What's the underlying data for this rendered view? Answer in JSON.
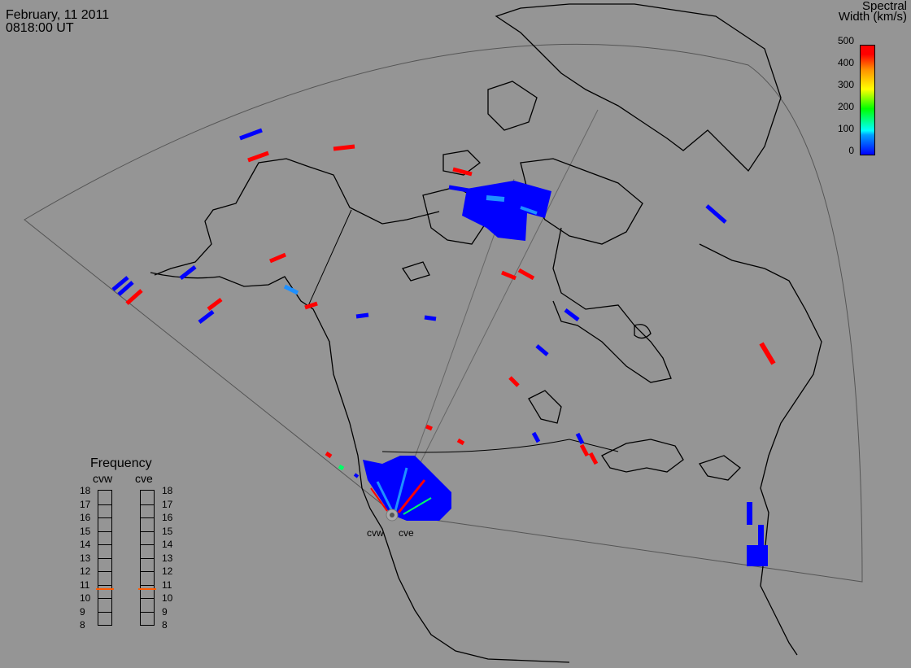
{
  "header": {
    "date": "February, 11 2011",
    "time": "0818:00 UT"
  },
  "colorbar": {
    "title_line1": "Spectral",
    "title_line2": "Width (km/s)",
    "ticks": [
      "500",
      "400",
      "300",
      "200",
      "100",
      "0"
    ],
    "colors": {
      "low": "#0000ff",
      "mid": "#00ff00",
      "high": "#ff0000"
    }
  },
  "frequency_panel": {
    "title": "Frequency",
    "radars": [
      {
        "name": "cvw",
        "value_mhz": 10.7,
        "indicator_color": "#ff5a00"
      },
      {
        "name": "cve",
        "value_mhz": 10.7,
        "indicator_color": "#ff5a00"
      }
    ],
    "ticks": [
      "18",
      "17",
      "16",
      "15",
      "14",
      "13",
      "12",
      "11",
      "10",
      "9",
      "8"
    ]
  },
  "radar_sites": [
    {
      "name": "cvw",
      "label": "cvw"
    },
    {
      "name": "cve",
      "label": "cve"
    }
  ],
  "colors": {
    "background": "#959595",
    "low_width": "#0000ff",
    "high_width": "#ff0000",
    "mid_width": "#1e90ff",
    "green_width": "#00ff66"
  }
}
